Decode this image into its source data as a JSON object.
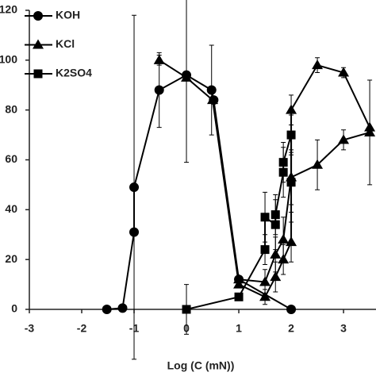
{
  "chart_data": {
    "type": "line",
    "x_label": "Log (C (mN))",
    "xlim": [
      -3,
      3.62
    ],
    "xticks": [
      -3,
      -2,
      -1,
      0,
      1,
      2,
      3
    ],
    "ylim": [
      0,
      120
    ],
    "yticks": [
      0,
      20,
      40,
      60,
      80,
      100,
      120
    ],
    "legend": "upper left",
    "series": [
      {
        "name": "KOH",
        "marker": "circle",
        "color": "#000000",
        "x": [
          -1.52,
          -1.22,
          -1,
          -1,
          -0.52,
          0,
          0.48,
          0.52,
          1,
          2
        ],
        "values": [
          0,
          0.5,
          31,
          49,
          88,
          94,
          88,
          84,
          12,
          0
        ],
        "errors": [
          0,
          0,
          0,
          69,
          15,
          35,
          18,
          0,
          0,
          0
        ]
      },
      {
        "name": "KCl",
        "marker": "triangle",
        "color": "#000000",
        "x": [
          -0.52,
          0,
          0.5,
          1,
          1.5,
          1.7,
          1.85,
          2,
          2,
          2.5,
          3,
          3.5,
          null,
          1,
          1.5,
          1.7,
          1.85,
          2,
          2.5,
          3,
          3.5
        ],
        "values": [
          100,
          93,
          84,
          10,
          5,
          13,
          20,
          27,
          80,
          98,
          95,
          73,
          null,
          12,
          11,
          22,
          28,
          53,
          58,
          68,
          71
        ],
        "errors": [
          2,
          0,
          0,
          0,
          3,
          6,
          6,
          8,
          6,
          3,
          2,
          0,
          null,
          0,
          5,
          7,
          9,
          11,
          10,
          4,
          21
        ]
      },
      {
        "name": "K2SO4",
        "marker": "square",
        "color": "#000000",
        "x": [
          0,
          1,
          1.5,
          1.5,
          1.7,
          1.7,
          1.85,
          1.85,
          2,
          2
        ],
        "values": [
          0,
          5,
          24,
          37,
          34,
          38,
          55,
          59,
          70,
          51
        ],
        "errors": [
          10,
          0,
          6,
          10,
          10,
          8,
          10,
          8,
          8,
          12
        ]
      }
    ]
  }
}
